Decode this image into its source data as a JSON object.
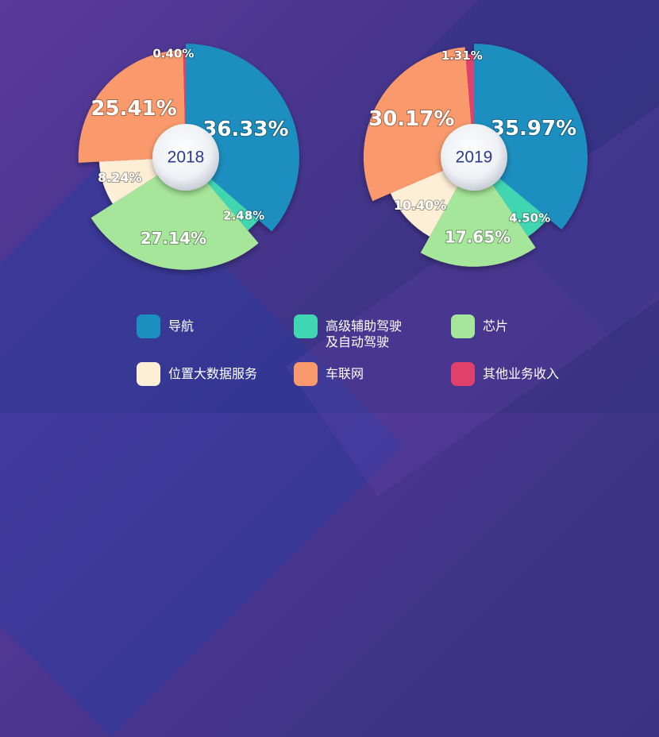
{
  "chart_data": [
    {
      "type": "pie",
      "center_label": "2018",
      "categories": [
        "导航",
        "高级辅助驾驶\n及自动驾驶",
        "芯片",
        "位置大数据服务",
        "车联网",
        "其他业务收入"
      ],
      "values": [
        36.33,
        2.48,
        27.14,
        8.24,
        25.41,
        0.4
      ],
      "labels": [
        "36.33%",
        "2.48%",
        "27.14%",
        "8.24%",
        "25.41%",
        "0.40%"
      ]
    },
    {
      "type": "pie",
      "center_label": "2019",
      "categories": [
        "导航",
        "高级辅助驾驶\n及自动驾驶",
        "芯片",
        "位置大数据服务",
        "车联网",
        "其他业务收入"
      ],
      "values": [
        35.97,
        4.5,
        17.65,
        10.4,
        30.17,
        1.31
      ],
      "labels": [
        "35.97%",
        "4.50%",
        "17.65%",
        "10.40%",
        "30.17%",
        "1.31%"
      ]
    }
  ],
  "legend": [
    {
      "label": "导航",
      "color": "#1a8fc0"
    },
    {
      "label": "高级辅助驾驶\n及自动驾驶",
      "color": "#3fd6b2"
    },
    {
      "label": "芯片",
      "color": "#a6e69a"
    },
    {
      "label": "位置大数据服务",
      "color": "#fdeed6"
    },
    {
      "label": "车联网",
      "color": "#fa9a6c"
    },
    {
      "label": "其他业务收入",
      "color": "#e0406c"
    }
  ]
}
